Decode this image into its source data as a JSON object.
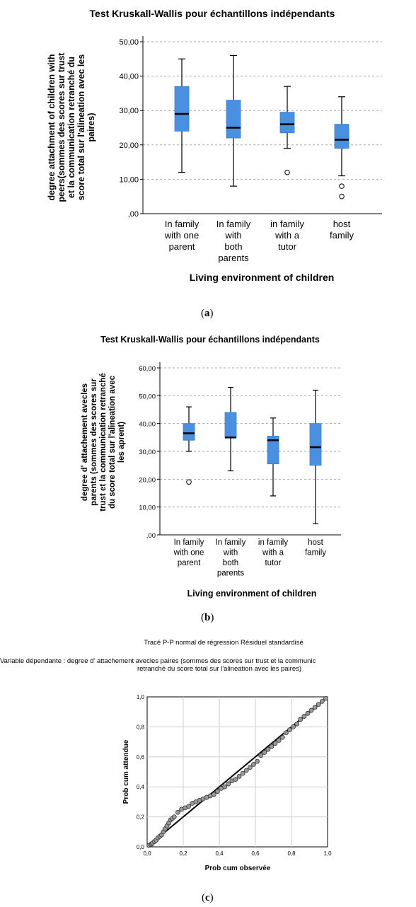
{
  "chart_data": [
    {
      "type": "boxplot",
      "panel": "(a)",
      "title": "Test Kruskall-Wallis pour échantillons indépendants",
      "xlabel": "Living environment of children",
      "ylabel_lines": [
        "degree attachment of children with",
        "peers(sommes des scores sur trust",
        "et la communication retranché du",
        "score total sur l'alineation avec les",
        "paires)"
      ],
      "yticks": [
        "50,00",
        "40,00",
        "30,00",
        "20,00",
        "10,00",
        ",00"
      ],
      "ylim": [
        0,
        55
      ],
      "grid": true,
      "box_color": "#4a90e2",
      "categories": [
        {
          "label_lines": [
            "In family",
            "with one",
            "parent"
          ],
          "min": 12,
          "q1": 24,
          "median": 29,
          "q3": 37,
          "max": 45,
          "outliers": []
        },
        {
          "label_lines": [
            "In family",
            "with",
            "both",
            "parents"
          ],
          "min": 8,
          "q1": 22,
          "median": 25,
          "q3": 33,
          "max": 46,
          "outliers": []
        },
        {
          "label_lines": [
            "in family",
            "with a",
            "tutor"
          ],
          "min": 19,
          "q1": 23.5,
          "median": 26,
          "q3": 29.5,
          "max": 37,
          "outliers": [
            12
          ]
        },
        {
          "label_lines": [
            "host",
            "family"
          ],
          "min": 11,
          "q1": 19,
          "median": 21.5,
          "q3": 26,
          "max": 34,
          "outliers": [
            8,
            5
          ]
        }
      ]
    },
    {
      "type": "boxplot",
      "panel": "(b)",
      "title": "Test Kruskall-Wallis pour échantillons indépendants",
      "xlabel": "Living environment of children",
      "ylabel_lines": [
        "degree d' attachement avecles",
        "parents (sommes des scores sur",
        "trust et la communication retranché",
        "du score total sur l'alineation avec",
        "les aprent)"
      ],
      "yticks": [
        "60,00",
        "50,00",
        "40,00",
        "30,00",
        "20,00",
        "10,00",
        ",00"
      ],
      "ylim": [
        0,
        62
      ],
      "grid": true,
      "box_color": "#4a90e2",
      "categories": [
        {
          "label_lines": [
            "In family",
            "with one",
            "parent"
          ],
          "min": 30,
          "q1": 34,
          "median": 36.5,
          "q3": 40,
          "max": 46,
          "outliers": [
            19
          ]
        },
        {
          "label_lines": [
            "In family",
            "with",
            "both",
            "parents"
          ],
          "min": 23,
          "q1": 35,
          "median": 35,
          "q3": 44,
          "max": 53,
          "outliers": []
        },
        {
          "label_lines": [
            "in family",
            "with a",
            "tutor"
          ],
          "min": 14,
          "q1": 25.5,
          "median": 34,
          "q3": 35.5,
          "max": 42,
          "outliers": []
        },
        {
          "label_lines": [
            "host",
            "family"
          ],
          "min": 4,
          "q1": 25,
          "median": 31.5,
          "q3": 40,
          "max": 52,
          "outliers": []
        }
      ]
    },
    {
      "type": "scatter",
      "panel": "(c)",
      "title": "Tracé P-P normal de régression Résiduel standardisé",
      "subtitle_lines": [
        "Variable dépendante : degree d' attachement avecles paires (sommes des scores sur trust et la communic",
        "retranché du score total sur l'alineation avec les paires)"
      ],
      "xlabel": "Prob cum observée",
      "ylabel": "Prob cum attendue",
      "xticks": [
        "0,0",
        "0,2",
        "0,4",
        "0,6",
        "0,8",
        "1,0"
      ],
      "yticks": [
        "1,0",
        "0,8",
        "0,6",
        "0,4",
        "0,2",
        "0,0"
      ],
      "xlim": [
        0,
        1
      ],
      "ylim": [
        0,
        1
      ],
      "grid": true,
      "reference_line": [
        [
          0,
          0
        ],
        [
          1,
          1
        ]
      ],
      "points": [
        [
          0.01,
          0.01
        ],
        [
          0.02,
          0.015
        ],
        [
          0.025,
          0.02
        ],
        [
          0.03,
          0.025
        ],
        [
          0.04,
          0.035
        ],
        [
          0.05,
          0.045
        ],
        [
          0.06,
          0.06
        ],
        [
          0.07,
          0.07
        ],
        [
          0.08,
          0.08
        ],
        [
          0.09,
          0.1
        ],
        [
          0.1,
          0.12
        ],
        [
          0.11,
          0.14
        ],
        [
          0.12,
          0.16
        ],
        [
          0.13,
          0.18
        ],
        [
          0.14,
          0.19
        ],
        [
          0.15,
          0.2
        ],
        [
          0.17,
          0.23
        ],
        [
          0.19,
          0.25
        ],
        [
          0.21,
          0.26
        ],
        [
          0.23,
          0.27
        ],
        [
          0.25,
          0.29
        ],
        [
          0.27,
          0.3
        ],
        [
          0.29,
          0.31
        ],
        [
          0.31,
          0.32
        ],
        [
          0.33,
          0.33
        ],
        [
          0.35,
          0.34
        ],
        [
          0.37,
          0.35
        ],
        [
          0.39,
          0.37
        ],
        [
          0.41,
          0.39
        ],
        [
          0.43,
          0.4
        ],
        [
          0.45,
          0.42
        ],
        [
          0.47,
          0.44
        ],
        [
          0.49,
          0.45
        ],
        [
          0.51,
          0.47
        ],
        [
          0.53,
          0.49
        ],
        [
          0.55,
          0.51
        ],
        [
          0.57,
          0.53
        ],
        [
          0.59,
          0.55
        ],
        [
          0.61,
          0.57
        ],
        [
          0.63,
          0.61
        ],
        [
          0.65,
          0.63
        ],
        [
          0.67,
          0.65
        ],
        [
          0.69,
          0.67
        ],
        [
          0.71,
          0.69
        ],
        [
          0.73,
          0.71
        ],
        [
          0.75,
          0.73
        ],
        [
          0.77,
          0.76
        ],
        [
          0.79,
          0.78
        ],
        [
          0.81,
          0.8
        ],
        [
          0.83,
          0.82
        ],
        [
          0.85,
          0.85
        ],
        [
          0.87,
          0.87
        ],
        [
          0.89,
          0.89
        ],
        [
          0.91,
          0.91
        ],
        [
          0.93,
          0.93
        ],
        [
          0.95,
          0.95
        ],
        [
          0.97,
          0.97
        ],
        [
          0.99,
          0.99
        ]
      ]
    }
  ],
  "labels": {
    "a": "(a)",
    "b": "(b)",
    "c": "(c)"
  }
}
